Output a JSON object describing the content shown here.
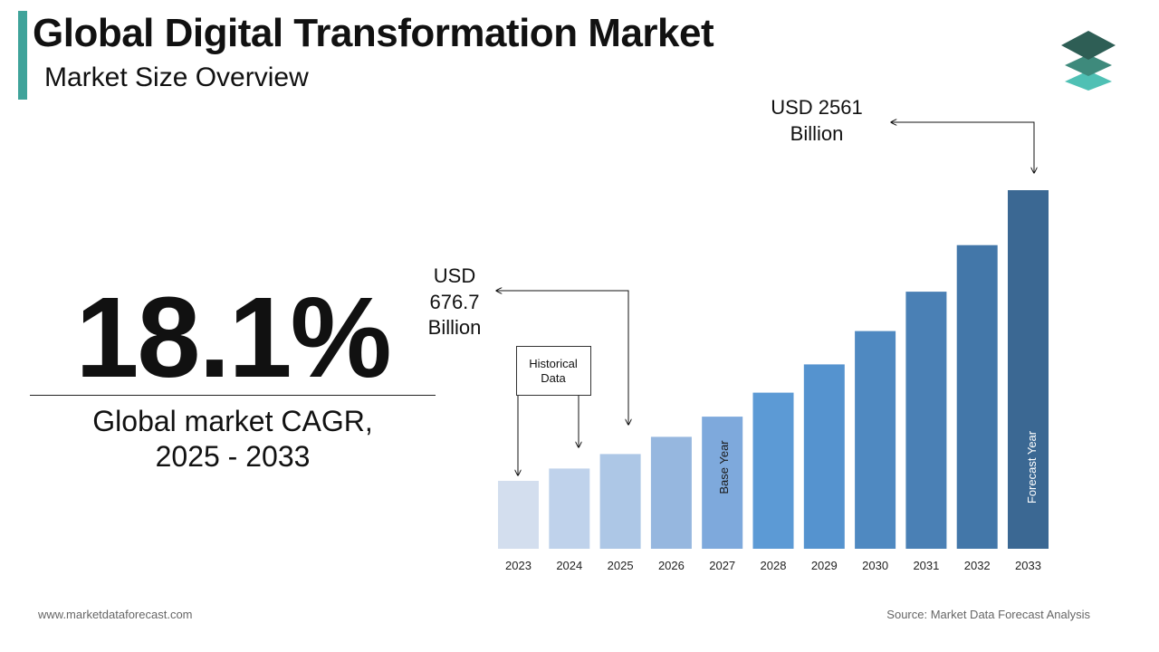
{
  "header": {
    "title": "Global Digital Transformation Market",
    "subtitle": "Market Size Overview"
  },
  "logo": {
    "icon": "stacked-layers-icon",
    "colors": [
      "#2e5e55",
      "#3e8a7c",
      "#4fc0b4"
    ]
  },
  "kpi": {
    "value": "18.1%",
    "label_line1": "Global market CAGR,",
    "label_line2": "2025 - 2033"
  },
  "chart_data": {
    "type": "bar",
    "categories": [
      "2023",
      "2024",
      "2025",
      "2026",
      "2027",
      "2028",
      "2029",
      "2030",
      "2031",
      "2032",
      "2033"
    ],
    "values": [
      572.8,
      676.7,
      799.2,
      943.9,
      1114.7,
      1316.5,
      1554.8,
      1836.2,
      2168.6,
      2561.0,
      3024.5
    ],
    "ylim": [
      0,
      3024.5
    ],
    "grid": false,
    "colors": [
      "#d3deee",
      "#bfd2eb",
      "#adc7e6",
      "#96b7df",
      "#7ea9dc",
      "#5c9ad5",
      "#5593cf",
      "#4f89c1",
      "#4a80b5",
      "#4377a9",
      "#3b6893"
    ],
    "annotations": {
      "top": {
        "line1": "USD 2561",
        "line2": "Billion"
      },
      "mid": {
        "line1": "USD",
        "line2": "676.7",
        "line3": "Billion"
      },
      "historical": {
        "line1": "Historical",
        "line2": "Data"
      },
      "base_year": "Base Year",
      "forecast_year": "Forecast Year"
    }
  },
  "footer": {
    "website": "www.marketdataforecast.com",
    "source": "Source: Market Data Forecast Analysis"
  }
}
